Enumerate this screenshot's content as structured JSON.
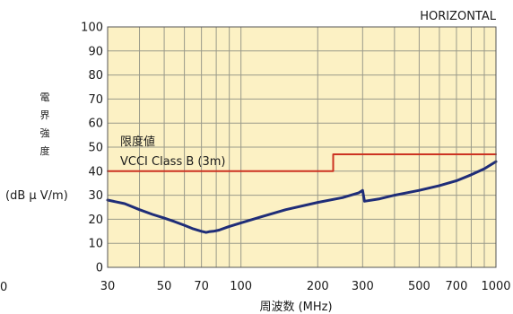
{
  "chart_data": {
    "type": "line",
    "title": "HORIZONTAL",
    "xlabel": "周波数 (MHz)",
    "ylabel_chars": [
      "電",
      "界",
      "強",
      "度"
    ],
    "ylabel_unit": "(dB μ V/m)",
    "x_scale": "log",
    "xlim": [
      30,
      1000
    ],
    "ylim": [
      0,
      100
    ],
    "grid": true,
    "x_ticks": [
      30,
      50,
      70,
      100,
      200,
      300,
      500,
      700,
      1000
    ],
    "x_tick_labels": [
      "30",
      "50",
      "70",
      "100",
      "200",
      "300",
      "500",
      "700",
      "1000"
    ],
    "x_minor_grid": [
      40,
      60,
      80,
      90,
      400,
      600,
      800,
      900
    ],
    "y_ticks": [
      0,
      10,
      20,
      30,
      40,
      50,
      60,
      70,
      80,
      90,
      100
    ],
    "y_tick_labels": [
      "0",
      "10",
      "20",
      "30",
      "40",
      "50",
      "60",
      "70",
      "80",
      "90",
      "100"
    ],
    "left_stray_label": "0",
    "annotations": [
      "限度値",
      "VCCI Class B (3m)"
    ],
    "colors": {
      "plot_background": "#fcf1c4",
      "grid": "#9a9a8a",
      "limit_line": "#cc3322",
      "measurement": "#1f2d78"
    },
    "series": [
      {
        "role": "limit",
        "x": [
          30,
          230,
          230,
          1000
        ],
        "y": [
          40,
          40,
          47,
          47
        ]
      },
      {
        "role": "measurement",
        "x": [
          30,
          35,
          40,
          45,
          50,
          55,
          60,
          65,
          70,
          73,
          75,
          78,
          82,
          90,
          100,
          120,
          150,
          200,
          250,
          290,
          300,
          305,
          350,
          400,
          500,
          600,
          700,
          800,
          900,
          1000
        ],
        "y": [
          28,
          26.5,
          24,
          22,
          20.5,
          19,
          17.5,
          16,
          15,
          14.5,
          14.8,
          15,
          15.5,
          17,
          18.5,
          21,
          24,
          27,
          29,
          31,
          32,
          27.5,
          28.5,
          30,
          32,
          34,
          36,
          38.5,
          41,
          44
        ]
      }
    ]
  }
}
